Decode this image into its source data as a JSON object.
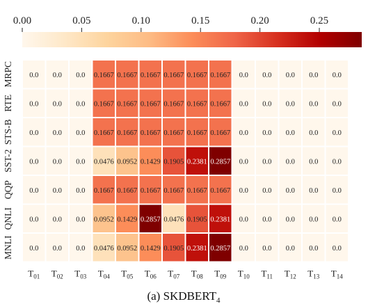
{
  "chart_data": {
    "type": "heatmap",
    "caption": "(a) SKDBERT",
    "caption_subscript": "4",
    "rows": [
      "MRPC",
      "RTE",
      "STS-B",
      "SST-2",
      "QQP",
      "QNLI",
      "MNLI"
    ],
    "columns": [
      "T01",
      "T02",
      "T03",
      "T04",
      "T05",
      "T06",
      "T07",
      "T08",
      "T09",
      "T10",
      "T11",
      "T12",
      "T13",
      "T14"
    ],
    "column_main": "T",
    "column_subs": [
      "01",
      "02",
      "03",
      "04",
      "05",
      "06",
      "07",
      "08",
      "09",
      "10",
      "11",
      "12",
      "13",
      "14"
    ],
    "values": [
      [
        "0.0",
        "0.0",
        "0.0",
        "0.1667",
        "0.1667",
        "0.1667",
        "0.1667",
        "0.1667",
        "0.1667",
        "0.0",
        "0.0",
        "0.0",
        "0.0",
        "0.0"
      ],
      [
        "0.0",
        "0.0",
        "0.0",
        "0.1667",
        "0.1667",
        "0.1667",
        "0.1667",
        "0.1667",
        "0.1667",
        "0.0",
        "0.0",
        "0.0",
        "0.0",
        "0.0"
      ],
      [
        "0.0",
        "0.0",
        "0.0",
        "0.1667",
        "0.1667",
        "0.1667",
        "0.1667",
        "0.1667",
        "0.1667",
        "0.0",
        "0.0",
        "0.0",
        "0.0",
        "0.0"
      ],
      [
        "0.0",
        "0.0",
        "0.0",
        "0.0476",
        "0.0952",
        "0.1429",
        "0.1905",
        "0.2381",
        "0.2857",
        "0.0",
        "0.0",
        "0.0",
        "0.0",
        "0.0"
      ],
      [
        "0.0",
        "0.0",
        "0.0",
        "0.1667",
        "0.1667",
        "0.1667",
        "0.1667",
        "0.1667",
        "0.1667",
        "0.0",
        "0.0",
        "0.0",
        "0.0",
        "0.0"
      ],
      [
        "0.0",
        "0.0",
        "0.0",
        "0.0952",
        "0.1429",
        "0.2857",
        "0.0476",
        "0.1905",
        "0.2381",
        "0.0",
        "0.0",
        "0.0",
        "0.0",
        "0.0"
      ],
      [
        "0.0",
        "0.0",
        "0.0",
        "0.0476",
        "0.0952",
        "0.1429",
        "0.1905",
        "0.2381",
        "0.2857",
        "0.0",
        "0.0",
        "0.0",
        "0.0",
        "0.0"
      ]
    ],
    "colorbar": {
      "min": 0.0,
      "max": 0.2857,
      "ticks": [
        "0.00",
        "0.05",
        "0.10",
        "0.15",
        "0.20",
        "0.25"
      ],
      "tick_values": [
        0.0,
        0.05,
        0.1,
        0.15,
        0.2,
        0.25
      ],
      "placement": "top",
      "colormap": "OrRd",
      "stops": [
        "#fff7ec",
        "#fee8c8",
        "#fdd49e",
        "#fdbb84",
        "#fc8d59",
        "#ef6548",
        "#d7301f",
        "#b30000",
        "#7f0000"
      ]
    }
  }
}
